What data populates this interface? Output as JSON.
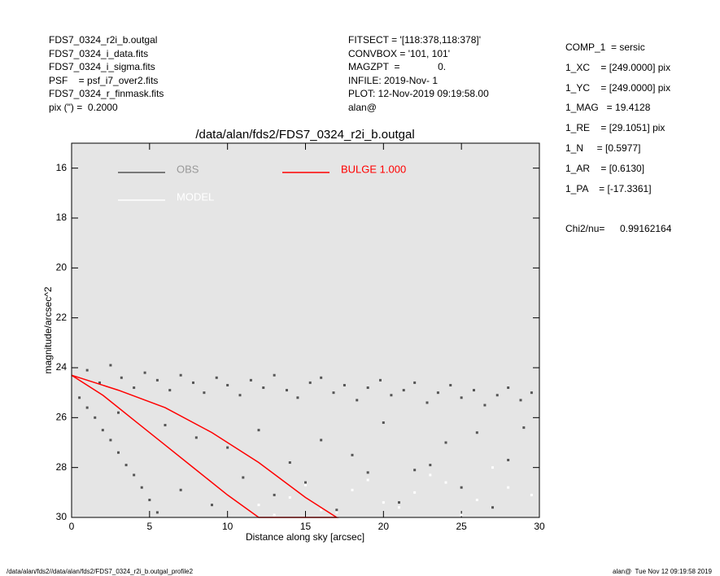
{
  "header": {
    "left": [
      "FDS7_0324_r2i_b.outgal",
      "FDS7_0324_i_data.fits",
      "FDS7_0324_i_sigma.fits",
      "PSF    = psf_i7_over2.fits",
      "FDS7_0324_r_finmask.fits",
      "pix (\") =  0.2000"
    ],
    "middle": [
      "FITSECT = '[118:378,118:378]'",
      "CONVBOX = '101, 101'",
      "MAGZPT  =              0.",
      "INFILE: 2019-Nov- 1",
      "PLOT: 12-Nov-2019 09:19:58.00",
      "alan@"
    ],
    "right": [
      "COMP_1  = sersic",
      "1_XC    = [249.0000] pix",
      "1_YC    = [249.0000] pix",
      "1_MAG   = 19.4128",
      "1_RE    = [29.1051] pix",
      "1_N     = [0.5977]",
      "1_AR    = [0.6130]",
      "1_PA    = [-17.3361]"
    ],
    "chi2_label": "Chi2/nu=",
    "chi2_value": "0.99162164"
  },
  "footer": {
    "left": "/data/alan/fds2//data/alan/fds2/FDS7_0324_r2i_b.outgal_profile2",
    "right": "alan@  Tue Nov 12 09:19:58 2019"
  },
  "chart_data": {
    "type": "scatter",
    "title": "/data/alan/fds2/FDS7_0324_r2i_b.outgal",
    "xlabel": "Distance along sky [arcsec]",
    "ylabel": "magnitude/arcsec^2",
    "xlim": [
      0,
      30
    ],
    "ylim": [
      30,
      15
    ],
    "xticks": [
      0,
      5,
      10,
      15,
      20,
      25,
      30
    ],
    "yticks": [
      16,
      18,
      20,
      22,
      24,
      26,
      28,
      30
    ],
    "series": [
      {
        "name": "OBS",
        "color": "#555555",
        "type": "scatter",
        "x": [
          1,
          1.8,
          2.5,
          3.2,
          4,
          4.7,
          5.5,
          6.3,
          7,
          7.8,
          8.5,
          9.3,
          10,
          10.8,
          11.5,
          12.3,
          13,
          13.8,
          14.5,
          15.3,
          16,
          16.8,
          17.5,
          18.3,
          19,
          19.8,
          20.5,
          21.3,
          22,
          22.8,
          23.5,
          24.3,
          25,
          25.8,
          26.5,
          27.3,
          28,
          28.8,
          29.5,
          0.5,
          1,
          1.5,
          2,
          2.5,
          3,
          3.5,
          4,
          4.5,
          5,
          5.5,
          3,
          6,
          8,
          10,
          12,
          14,
          16,
          18,
          20,
          22,
          24,
          26,
          28,
          7,
          9,
          11,
          13,
          15,
          17,
          19,
          21,
          23,
          25,
          27,
          29
        ],
        "values": [
          24.1,
          24.6,
          23.9,
          24.4,
          24.8,
          24.2,
          24.5,
          24.9,
          24.3,
          24.6,
          25.0,
          24.4,
          24.7,
          25.1,
          24.5,
          24.8,
          24.3,
          24.9,
          25.2,
          24.6,
          24.4,
          25.0,
          24.7,
          25.3,
          24.8,
          24.5,
          25.1,
          24.9,
          24.6,
          25.4,
          25.0,
          24.7,
          25.2,
          24.9,
          25.5,
          25.1,
          24.8,
          25.3,
          25.0,
          25.2,
          25.6,
          26.0,
          26.5,
          26.9,
          27.4,
          27.9,
          28.3,
          28.8,
          29.3,
          29.8,
          25.8,
          26.3,
          26.8,
          27.2,
          26.5,
          27.8,
          26.9,
          27.5,
          26.2,
          28.1,
          27.0,
          26.6,
          27.7,
          28.9,
          29.5,
          28.4,
          29.1,
          28.6,
          29.7,
          28.2,
          29.4,
          27.9,
          28.8,
          29.6,
          26.4
        ]
      },
      {
        "name": "MODEL",
        "color": "#ffffff",
        "type": "scatter",
        "x": [
          12,
          14,
          16,
          18,
          20,
          22,
          24,
          26,
          28,
          29.5,
          13,
          17,
          21,
          25,
          15,
          19,
          23,
          27
        ],
        "values": [
          29.5,
          29.2,
          29.7,
          28.9,
          29.4,
          29.0,
          28.6,
          29.3,
          28.8,
          29.1,
          29.9,
          29.8,
          29.6,
          29.9,
          28.7,
          28.5,
          28.3,
          28.0
        ]
      },
      {
        "name": "BULGE  1.000",
        "color": "#ff0000",
        "type": "line",
        "x": [
          0,
          3,
          6,
          9,
          12,
          15,
          17,
          12,
          10,
          8,
          6,
          4,
          2,
          0
        ],
        "values": [
          24.3,
          24.9,
          25.6,
          26.6,
          27.8,
          29.2,
          30,
          30,
          29.1,
          28.1,
          27.1,
          26.1,
          25.1,
          24.3
        ]
      }
    ]
  }
}
